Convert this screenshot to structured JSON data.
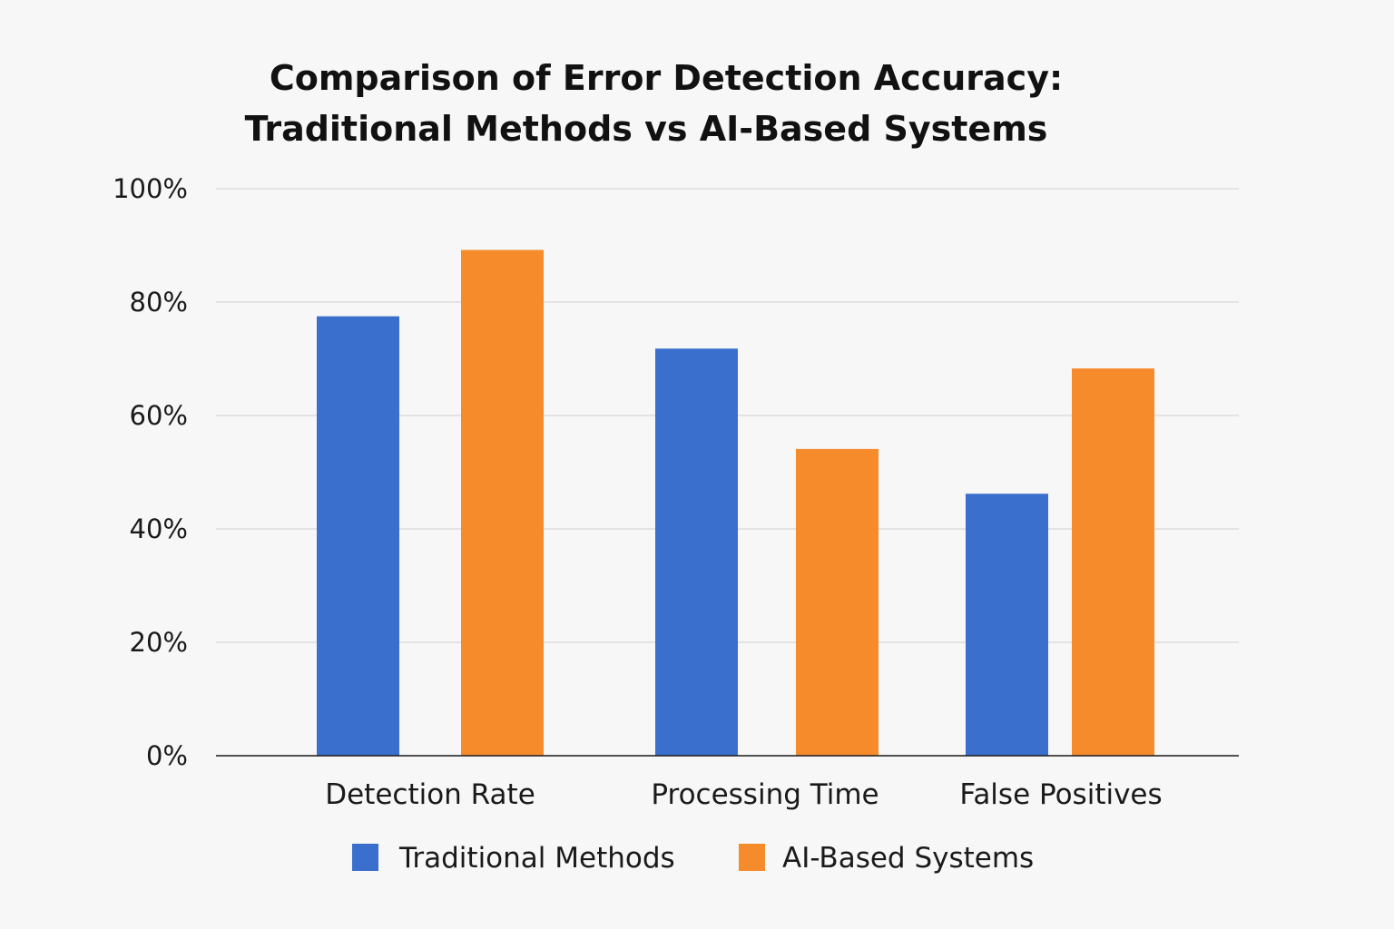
{
  "chart_data": {
    "type": "bar",
    "title_lines": [
      "Comparison of Error Detection Accuracy:",
      "Traditional Methods vs AI-Based Systems"
    ],
    "categories": [
      "Detection Rate",
      "Processing Time",
      "False Positives"
    ],
    "series": [
      {
        "name": "Traditional Methods",
        "color": "#3a6fcd",
        "values": [
          77.5,
          71.8,
          46.2
        ]
      },
      {
        "name": "AI-Based Systems",
        "color": "#f68b2c",
        "values": [
          89.2,
          54.1,
          68.3
        ]
      }
    ],
    "y_ticks": [
      "0%",
      "20%",
      "40%",
      "60%",
      "80%",
      "100%"
    ],
    "ylim": [
      0,
      100
    ],
    "xlabel": "",
    "ylabel": "",
    "grid": true,
    "legend_position": "bottom"
  }
}
